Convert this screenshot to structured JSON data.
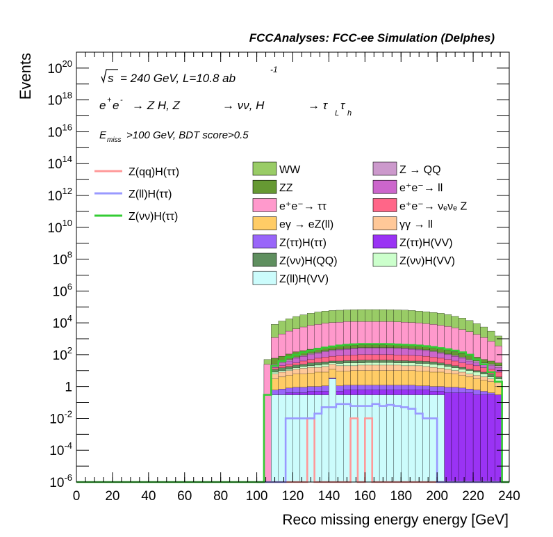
{
  "header": {
    "title": "FCCAnalyses: FCC-ee Simulation (Delphes)"
  },
  "annotations": {
    "sqrt_s": "s",
    "energy_lumi": "= 240 GeV, L=10.8 ab",
    "lumi_exp": "-1",
    "process_a": "e",
    "process_b": "e",
    "process_c": "→ Z H, Z",
    "process_d": "→ νν, H",
    "process_e": "→ τ",
    "process_f": "τ",
    "process_sub_l": "L",
    "process_sub_h": "h",
    "cut_e": "E",
    "cut_sub": "miss",
    "cut_rest": ">100 GeV, BDT score>0.5"
  },
  "chart_data": {
    "type": "histogram",
    "x_scale": "linear",
    "y_scale": "log",
    "xlabel": "Reco missing energy energy [GeV]",
    "ylabel": "Events",
    "xlim": [
      0,
      240
    ],
    "ylim": [
      1e-06,
      1e+21
    ],
    "bin_width": 4,
    "xticks": [
      "0",
      "20",
      "40",
      "60",
      "80",
      "100",
      "120",
      "140",
      "160",
      "180",
      "200",
      "220",
      "240"
    ],
    "yticks": [
      {
        "value": 1e-06,
        "base": "10",
        "exp": "-6"
      },
      {
        "value": 0.0001,
        "base": "10",
        "exp": "-4"
      },
      {
        "value": 0.01,
        "base": "10",
        "exp": "-2"
      },
      {
        "value": 1,
        "base": "1",
        "exp": ""
      },
      {
        "value": 100,
        "base": "10",
        "exp": "2"
      },
      {
        "value": 10000.0,
        "base": "10",
        "exp": "4"
      },
      {
        "value": 1000000.0,
        "base": "10",
        "exp": "6"
      },
      {
        "value": 100000000.0,
        "base": "10",
        "exp": "8"
      },
      {
        "value": 10000000000.0,
        "base": "10",
        "exp": "10"
      },
      {
        "value": 1000000000000.0,
        "base": "10",
        "exp": "12"
      },
      {
        "value": 100000000000000.0,
        "base": "10",
        "exp": "14"
      },
      {
        "value": 1e+16,
        "base": "10",
        "exp": "16"
      },
      {
        "value": 1e+18,
        "base": "10",
        "exp": "18"
      },
      {
        "value": 1e+20,
        "base": "10",
        "exp": "20"
      }
    ],
    "stack_bins": [
      100,
      104,
      108,
      112,
      116,
      120,
      124,
      128,
      132,
      136,
      140,
      144,
      148,
      152,
      156,
      160,
      164,
      168,
      172,
      176,
      180,
      184,
      188,
      192,
      196,
      200,
      204,
      208,
      212,
      216,
      220,
      224,
      228,
      232
    ],
    "stack_layers": [
      {
        "name": "Z(ll)H(VV)",
        "color": "#ccfcfc",
        "top": [
          0,
          0,
          0.3,
          0.3,
          0.3,
          0.3,
          0.3,
          0.3,
          0.3,
          0.3,
          3,
          0.3,
          0.3,
          0.3,
          0.3,
          0.3,
          0.3,
          0.3,
          0.3,
          0.3,
          0.3,
          0.3,
          0.3,
          0.3,
          0.3,
          0.3,
          0,
          0,
          0,
          0,
          0,
          0,
          0,
          0
        ]
      },
      {
        "name": "Z(ττ)H(VV)",
        "color": "#9a33f4",
        "top": [
          0,
          0,
          0.3,
          0.3,
          0.4,
          0.4,
          0.4,
          0.5,
          0.5,
          0.5,
          3,
          0.5,
          0.6,
          0.6,
          0.6,
          0.6,
          0.6,
          0.6,
          0.6,
          0.6,
          0.6,
          0.6,
          0.6,
          0.6,
          0.5,
          0.5,
          0.4,
          0.4,
          0.4,
          0.4,
          0.3,
          0.3,
          0.3,
          0.3
        ]
      },
      {
        "name": "Z(ττ)H(ττ)",
        "color": "#9966f9",
        "top": [
          0,
          0,
          0.6,
          0.7,
          0.8,
          0.9,
          0.9,
          1,
          1,
          1.1,
          3.5,
          1.1,
          1.2,
          1.2,
          1.2,
          1.2,
          1.2,
          1.2,
          1.2,
          1.2,
          1.2,
          1.2,
          1.1,
          1.1,
          1,
          1,
          0.9,
          0.9,
          0.8,
          0.7,
          0.6,
          0.5,
          0.4,
          0.3
        ]
      },
      {
        "name": "eγ → eZ(ll)",
        "color": "#ffcc66",
        "top": [
          0,
          0,
          3,
          4,
          5,
          6,
          6,
          7,
          8,
          8,
          12,
          9,
          9,
          10,
          10,
          10,
          10,
          10,
          10,
          10,
          10,
          10,
          9,
          9,
          8,
          8,
          7,
          6,
          5,
          4,
          3,
          2.5,
          2,
          1
        ]
      },
      {
        "name": "γγ → ll",
        "color": "#ffc898",
        "top": [
          0,
          0,
          6,
          8,
          10,
          12,
          14,
          16,
          16,
          18,
          25,
          20,
          20,
          20,
          22,
          22,
          22,
          22,
          22,
          22,
          20,
          20,
          20,
          18,
          16,
          14,
          12,
          10,
          8,
          6,
          5,
          4,
          3,
          2
        ]
      },
      {
        "name": "Z(νν)H(VV)",
        "color": "#ccffcc",
        "top": [
          0,
          0,
          8,
          10,
          12,
          15,
          18,
          20,
          22,
          25,
          30,
          28,
          30,
          30,
          30,
          32,
          32,
          32,
          32,
          30,
          30,
          30,
          28,
          28,
          25,
          22,
          18,
          15,
          12,
          10,
          8,
          6,
          4,
          3
        ]
      },
      {
        "name": "Z(νν)H(QQ)",
        "color": "#5f8f5f",
        "top": [
          0,
          0,
          12,
          15,
          18,
          22,
          25,
          30,
          32,
          35,
          40,
          40,
          42,
          42,
          45,
          45,
          45,
          45,
          45,
          42,
          42,
          40,
          40,
          38,
          35,
          30,
          25,
          20,
          16,
          12,
          10,
          8,
          6,
          4
        ]
      },
      {
        "name": "e+e- → νeνe Z",
        "color": "#ff6688",
        "top": [
          0,
          0,
          15,
          20,
          25,
          30,
          40,
          50,
          60,
          70,
          80,
          85,
          90,
          95,
          100,
          100,
          100,
          100,
          100,
          95,
          95,
          90,
          85,
          80,
          70,
          60,
          50,
          40,
          30,
          25,
          20,
          15,
          12,
          8
        ]
      },
      {
        "name": "e+e- → ll",
        "color": "#cc66cc",
        "top": [
          0,
          0,
          20,
          30,
          40,
          60,
          80,
          100,
          120,
          150,
          180,
          200,
          220,
          240,
          250,
          250,
          250,
          250,
          250,
          240,
          240,
          220,
          200,
          180,
          150,
          120,
          100,
          80,
          60,
          40,
          30,
          25,
          20,
          15
        ]
      },
      {
        "name": "Z → QQ",
        "color": "#cc99cc",
        "top": [
          0,
          0,
          25,
          35,
          50,
          70,
          90,
          120,
          140,
          170,
          200,
          220,
          240,
          260,
          280,
          280,
          280,
          280,
          280,
          270,
          260,
          240,
          220,
          200,
          170,
          140,
          110,
          90,
          70,
          50,
          40,
          30,
          25,
          20
        ]
      },
      {
        "name": "ZZ",
        "color": "#669933",
        "top": [
          0,
          0,
          60,
          80,
          110,
          150,
          180,
          220,
          260,
          300,
          330,
          360,
          380,
          400,
          420,
          420,
          420,
          420,
          420,
          400,
          390,
          370,
          340,
          310,
          270,
          230,
          190,
          150,
          120,
          90,
          70,
          50,
          40,
          30
        ]
      },
      {
        "name": "e+e- → ττ",
        "color": "#ff99cc",
        "top": [
          0,
          25,
          1200,
          2000,
          3000,
          4200,
          5500,
          7000,
          8000,
          9500,
          10500,
          11000,
          12000,
          12000,
          12000,
          12000,
          12000,
          12000,
          12000,
          11500,
          11000,
          10500,
          10000,
          9000,
          8000,
          7000,
          6000,
          4800,
          3800,
          2800,
          1900,
          1200,
          700,
          350
        ]
      },
      {
        "name": "WW",
        "color": "#99cc66",
        "top": [
          0,
          50,
          8000,
          13000,
          18000,
          25000,
          32000,
          40000,
          48000,
          55000,
          60000,
          62000,
          65000,
          67000,
          68000,
          68000,
          68000,
          68000,
          67000,
          65000,
          63000,
          60000,
          55000,
          50000,
          45000,
          40000,
          33000,
          26000,
          20000,
          14000,
          9000,
          5500,
          3000,
          1500
        ]
      }
    ],
    "lines": [
      {
        "name": "Z(qq)H(ττ)",
        "color": "#ff9999",
        "x": [
          100,
          124,
          128,
          132,
          148,
          152,
          156,
          160,
          164,
          240
        ],
        "y": [
          1e-06,
          1e-06,
          0.01,
          1e-06,
          1e-06,
          0.01,
          1e-06,
          0.01,
          1e-06,
          1e-06
        ]
      },
      {
        "name": "Z(ll)H(ττ)",
        "color": "#9999ff",
        "x": [
          100,
          112,
          116,
          120,
          124,
          132,
          136,
          140,
          144,
          148,
          152,
          156,
          164,
          168,
          172,
          176,
          180,
          184,
          188,
          192,
          196,
          200,
          240
        ],
        "y": [
          1e-06,
          1e-06,
          0.01,
          0.01,
          0.01,
          0.02,
          0.05,
          0.05,
          0.08,
          0.08,
          0.06,
          0.06,
          0.08,
          0.06,
          0.07,
          0.06,
          0.05,
          0.04,
          0.02,
          0.01,
          0.01,
          1e-06,
          1e-06
        ]
      },
      {
        "name": "Z(νν)H(ττ)",
        "color": "#33cc33",
        "x": [
          0,
          100,
          104,
          108,
          112,
          116,
          120,
          124,
          128,
          132,
          136,
          140,
          144,
          148,
          152,
          156,
          160,
          164,
          168,
          172,
          176,
          180,
          184,
          188,
          192,
          196,
          200,
          204,
          208,
          212,
          216,
          220,
          224,
          228,
          232,
          236,
          240
        ],
        "y": [
          1e-06,
          1e-06,
          0.3,
          20,
          40,
          70,
          100,
          140,
          180,
          230,
          280,
          330,
          380,
          420,
          450,
          470,
          470,
          470,
          470,
          460,
          440,
          420,
          400,
          380,
          340,
          300,
          260,
          220,
          180,
          140,
          100,
          50,
          25,
          8,
          2,
          1e-06,
          1e-06
        ]
      }
    ],
    "legend_lines": [
      {
        "label": "Z(qq)H(ττ)",
        "color": "#ff9999"
      },
      {
        "label": "Z(ll)H(ττ)",
        "color": "#9999ff"
      },
      {
        "label": "Z(νν)H(ττ)",
        "color": "#33cc33"
      }
    ],
    "legend_fills": [
      {
        "label": "WW",
        "color": "#99cc66",
        "sup": ""
      },
      {
        "label": "ZZ",
        "color": "#669933",
        "sup": ""
      },
      {
        "label": "e⁺e⁻→ ττ",
        "color": "#ff99cc",
        "sup": ""
      },
      {
        "label": "eγ → eZ(ll)",
        "color": "#ffcc66",
        "sup": ""
      },
      {
        "label": "Z(ττ)H(ττ)",
        "color": "#9966f9",
        "sup": ""
      },
      {
        "label": "Z(νν)H(QQ)",
        "color": "#5f8f5f",
        "sup": ""
      },
      {
        "label": "Z(ll)H(VV)",
        "color": "#ccfcfc",
        "sup": ""
      },
      {
        "label": "Z → QQ",
        "color": "#cc99cc",
        "sup": ""
      },
      {
        "label": "e⁺e⁻→ ll",
        "color": "#cc66cc",
        "sup": ""
      },
      {
        "label": "e⁺e⁻→ νₑνₑ Z",
        "color": "#ff6688",
        "sup": ""
      },
      {
        "label": "γγ → ll",
        "color": "#ffc898",
        "sup": ""
      },
      {
        "label": "Z(ττ)H(VV)",
        "color": "#9a33f4",
        "sup": ""
      },
      {
        "label": "Z(νν)H(VV)",
        "color": "#ccffcc",
        "sup": ""
      }
    ]
  }
}
